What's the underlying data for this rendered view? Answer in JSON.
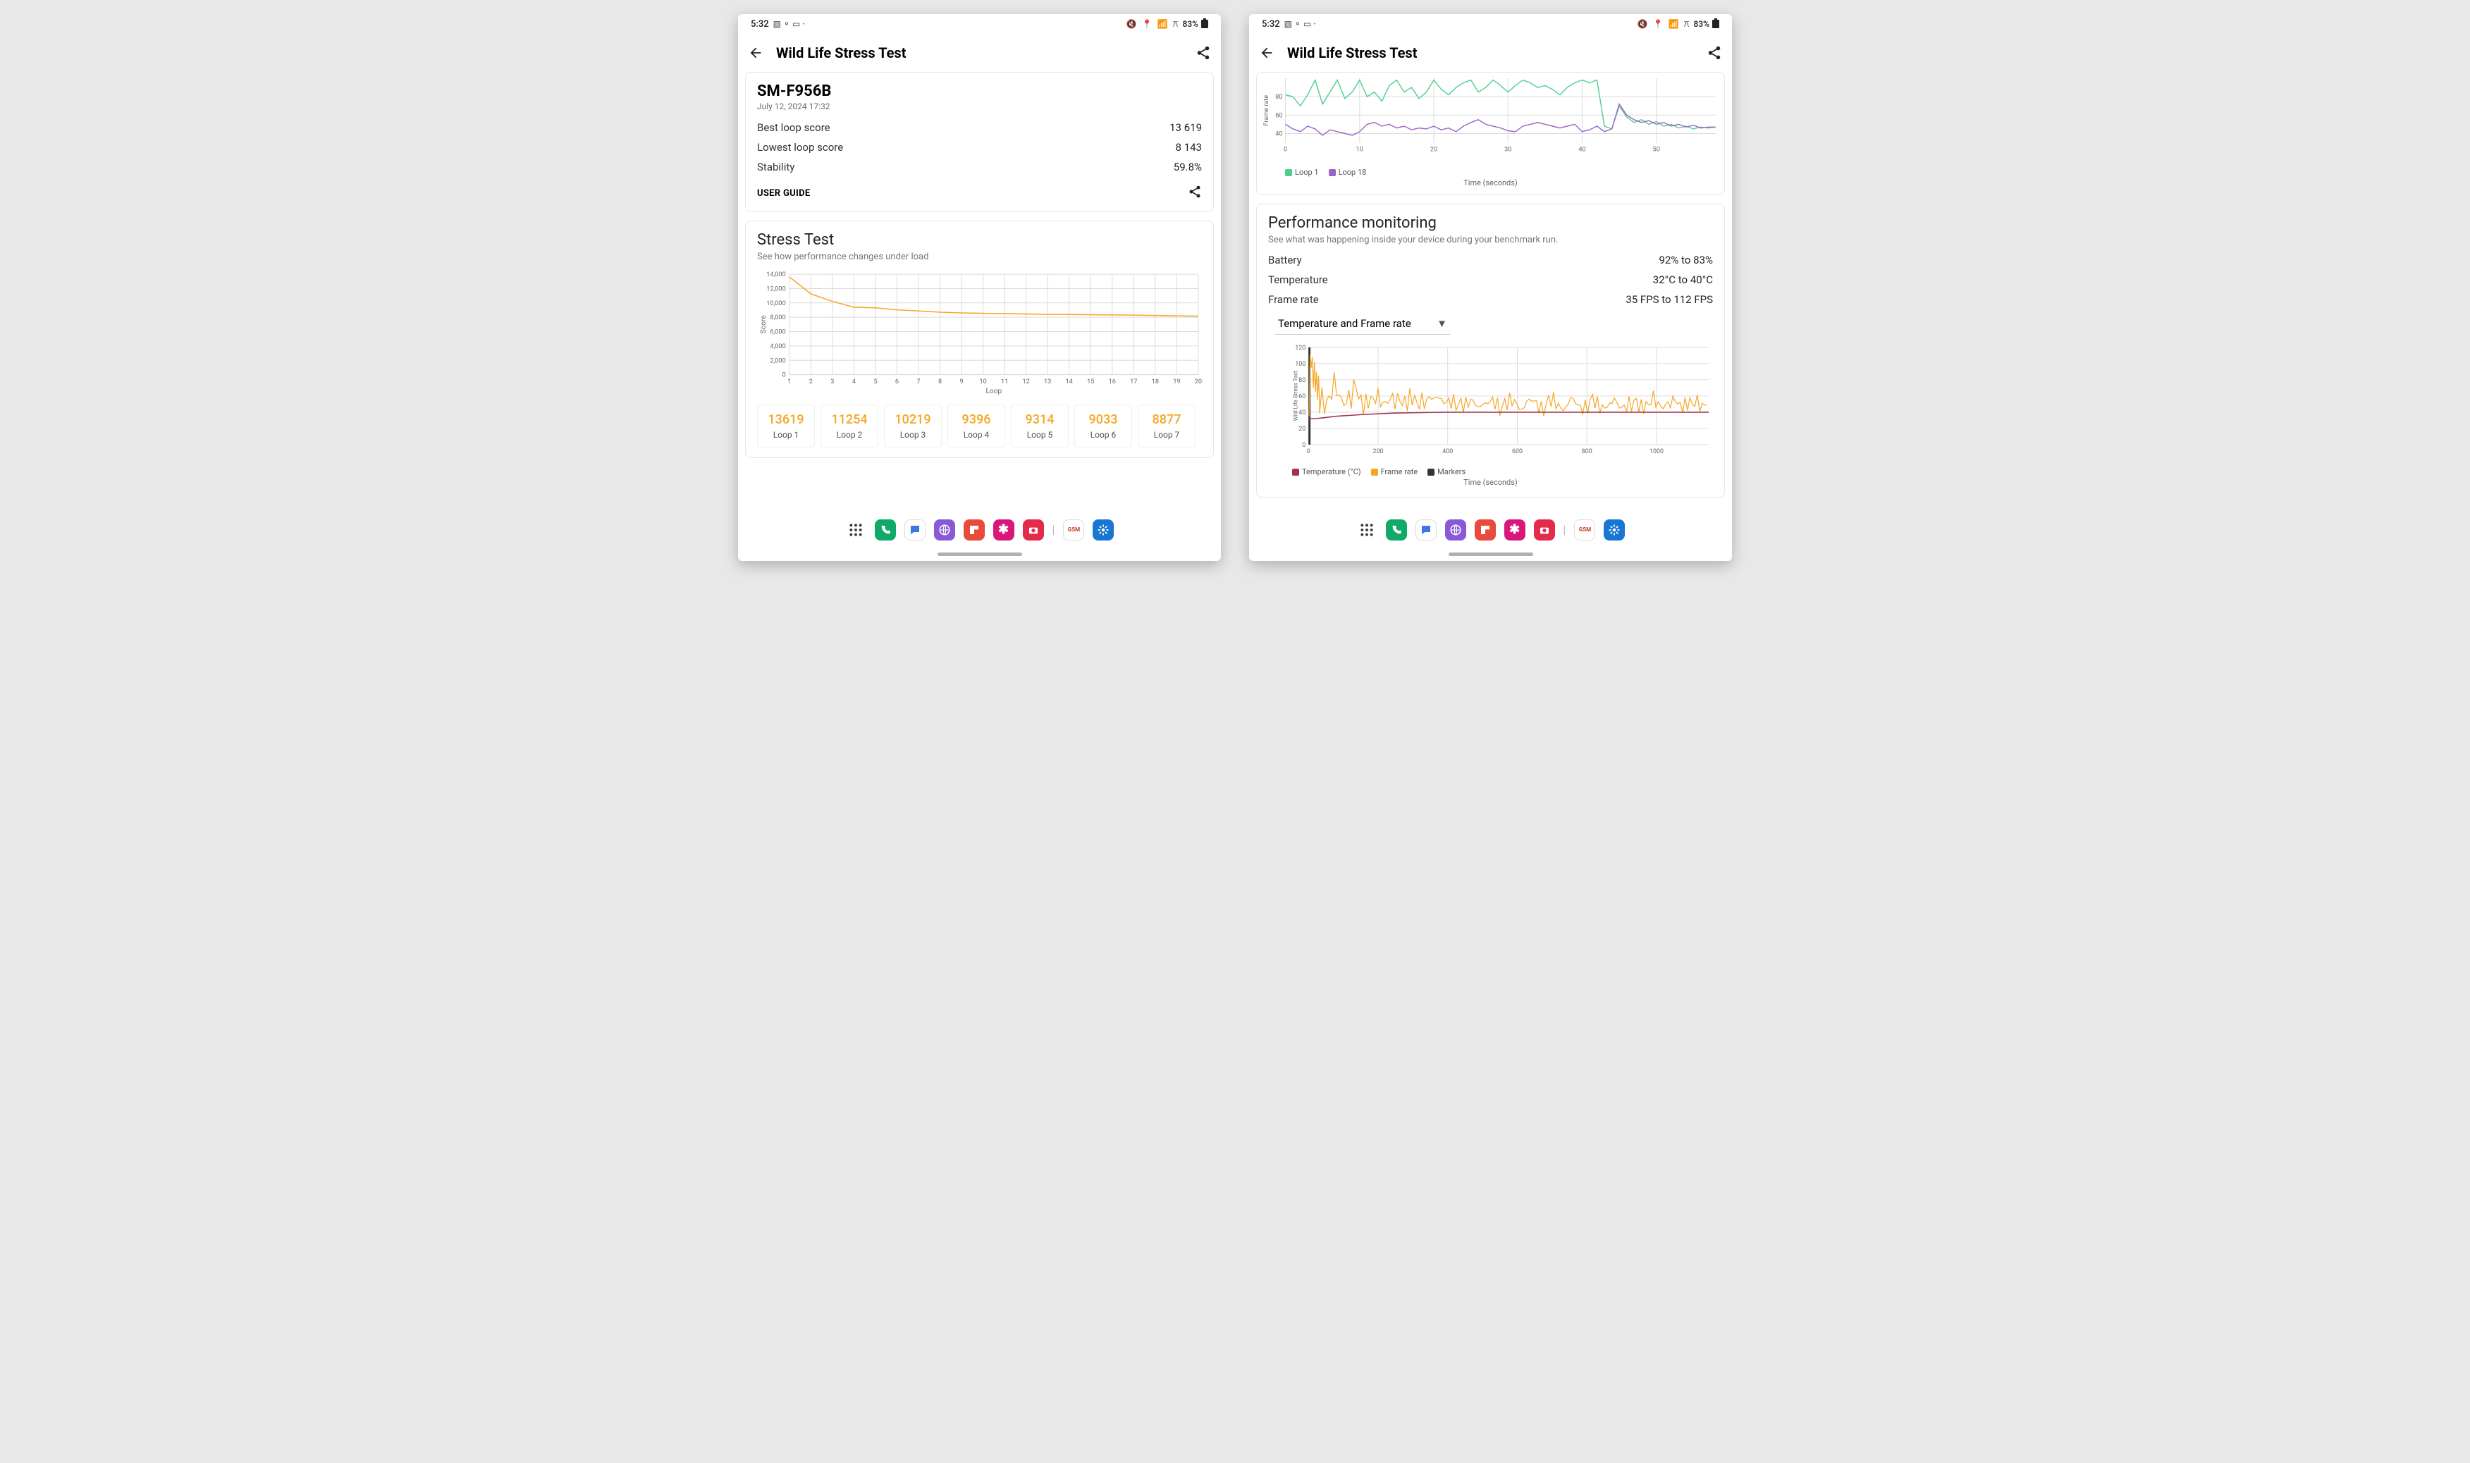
{
  "status": {
    "time": "5:32",
    "battery_pct": "83%"
  },
  "app": {
    "title": "Wild Life Stress Test"
  },
  "left": {
    "device": "SM-F956B",
    "date": "July 12, 2024 17:32",
    "rows": [
      {
        "label": "Best loop score",
        "value": "13 619"
      },
      {
        "label": "Lowest loop score",
        "value": "8 143"
      },
      {
        "label": "Stability",
        "value": "59.8%"
      }
    ],
    "user_guide": "USER GUIDE",
    "stress": {
      "title": "Stress Test",
      "sub": "See how performance changes under load",
      "chart": {
        "type": "line",
        "x_label": "Loop",
        "y_label": "Score",
        "x_ticks": [
          1,
          2,
          3,
          4,
          5,
          6,
          7,
          8,
          9,
          10,
          11,
          12,
          13,
          14,
          15,
          16,
          17,
          18,
          19,
          20
        ],
        "y_ticks": [
          0,
          2000,
          4000,
          6000,
          8000,
          10000,
          12000,
          14000
        ],
        "y_labels": [
          "0",
          "2,000",
          "4,000",
          "6,000",
          "8,000",
          "10,000",
          "12,000",
          "14,000"
        ],
        "ylim": [
          0,
          14000
        ],
        "values": [
          13619,
          11254,
          10219,
          9396,
          9314,
          9033,
          8877,
          8700,
          8600,
          8550,
          8500,
          8450,
          8400,
          8380,
          8350,
          8320,
          8300,
          8250,
          8200,
          8143
        ],
        "line_color": "#f5a623",
        "grid_color": "#dcdcdc",
        "background": "#ffffff",
        "axis_font": 9
      },
      "tiles": [
        {
          "score": "13619",
          "label": "Loop 1"
        },
        {
          "score": "11254",
          "label": "Loop 2"
        },
        {
          "score": "10219",
          "label": "Loop 3"
        },
        {
          "score": "9396",
          "label": "Loop 4"
        },
        {
          "score": "9314",
          "label": "Loop 5"
        },
        {
          "score": "9033",
          "label": "Loop 6"
        },
        {
          "score": "8877",
          "label": "Loop 7"
        }
      ]
    }
  },
  "right": {
    "frame_chart": {
      "type": "line",
      "y_label": "Frame rate",
      "x_label": "Time (seconds)",
      "x_ticks": [
        0,
        10,
        20,
        30,
        40,
        50
      ],
      "y_ticks": [
        40,
        60,
        80
      ],
      "ylim": [
        30,
        100
      ],
      "xlim": [
        0,
        58
      ],
      "legend": [
        {
          "label": "Loop 1",
          "color": "#4fcf8f"
        },
        {
          "label": "Loop 18",
          "color": "#9966c7"
        }
      ],
      "series": [
        {
          "color": "#4fcf8f",
          "points": [
            [
              0,
              82
            ],
            [
              1,
              80
            ],
            [
              2,
              70
            ],
            [
              3,
              82
            ],
            [
              4,
              98
            ],
            [
              5,
              72
            ],
            [
              6,
              85
            ],
            [
              7,
              98
            ],
            [
              8,
              78
            ],
            [
              9,
              85
            ],
            [
              10,
              98
            ],
            [
              11,
              80
            ],
            [
              12,
              85
            ],
            [
              13,
              75
            ],
            [
              14,
              92
            ],
            [
              15,
              98
            ],
            [
              16,
              85
            ],
            [
              17,
              90
            ],
            [
              18,
              78
            ],
            [
              19,
              85
            ],
            [
              20,
              98
            ],
            [
              21,
              88
            ],
            [
              22,
              82
            ],
            [
              23,
              90
            ],
            [
              24,
              95
            ],
            [
              25,
              98
            ],
            [
              26,
              85
            ],
            [
              27,
              90
            ],
            [
              28,
              98
            ],
            [
              29,
              92
            ],
            [
              30,
              85
            ],
            [
              31,
              92
            ],
            [
              32,
              98
            ],
            [
              33,
              95
            ],
            [
              34,
              90
            ],
            [
              35,
              92
            ],
            [
              36,
              88
            ],
            [
              37,
              82
            ],
            [
              38,
              90
            ],
            [
              39,
              95
            ],
            [
              40,
              98
            ],
            [
              41,
              95
            ],
            [
              42,
              98
            ],
            [
              43,
              48
            ],
            [
              44,
              45
            ],
            [
              45,
              70
            ],
            [
              46,
              58
            ],
            [
              47,
              52
            ],
            [
              48,
              55
            ],
            [
              49,
              50
            ],
            [
              50,
              53
            ],
            [
              51,
              48
            ],
            [
              52,
              50
            ],
            [
              53,
              46
            ],
            [
              54,
              48
            ],
            [
              55,
              45
            ],
            [
              56,
              47
            ],
            [
              57,
              46
            ],
            [
              58,
              47
            ]
          ]
        },
        {
          "color": "#9966c7",
          "points": [
            [
              0,
              50
            ],
            [
              1,
              45
            ],
            [
              2,
              42
            ],
            [
              3,
              48
            ],
            [
              4,
              45
            ],
            [
              5,
              38
            ],
            [
              6,
              44
            ],
            [
              7,
              42
            ],
            [
              8,
              40
            ],
            [
              9,
              38
            ],
            [
              10,
              42
            ],
            [
              11,
              50
            ],
            [
              12,
              52
            ],
            [
              13,
              48
            ],
            [
              14,
              50
            ],
            [
              15,
              46
            ],
            [
              16,
              48
            ],
            [
              17,
              44
            ],
            [
              18,
              46
            ],
            [
              19,
              45
            ],
            [
              20,
              48
            ],
            [
              21,
              44
            ],
            [
              22,
              46
            ],
            [
              23,
              42
            ],
            [
              24,
              48
            ],
            [
              25,
              52
            ],
            [
              26,
              55
            ],
            [
              27,
              50
            ],
            [
              28,
              48
            ],
            [
              29,
              46
            ],
            [
              30,
              43
            ],
            [
              31,
              42
            ],
            [
              32,
              48
            ],
            [
              33,
              50
            ],
            [
              34,
              52
            ],
            [
              35,
              50
            ],
            [
              36,
              48
            ],
            [
              37,
              46
            ],
            [
              38,
              48
            ],
            [
              39,
              50
            ],
            [
              40,
              42
            ],
            [
              41,
              44
            ],
            [
              42,
              48
            ],
            [
              43,
              42
            ],
            [
              44,
              45
            ],
            [
              45,
              72
            ],
            [
              46,
              60
            ],
            [
              47,
              55
            ],
            [
              48,
              52
            ],
            [
              49,
              54
            ],
            [
              50,
              50
            ],
            [
              51,
              52
            ],
            [
              52,
              48
            ],
            [
              53,
              50
            ],
            [
              54,
              47
            ],
            [
              55,
              49
            ],
            [
              56,
              46
            ],
            [
              57,
              47
            ],
            [
              58,
              47
            ]
          ]
        }
      ],
      "grid_color": "#dcdcdc",
      "axis_font": 9
    },
    "perf": {
      "title": "Performance monitoring",
      "sub": "See what was happening inside your device during your benchmark run.",
      "rows": [
        {
          "label": "Battery",
          "value": "92% to 83%"
        },
        {
          "label": "Temperature",
          "value": "32°C to 40°C"
        },
        {
          "label": "Frame rate",
          "value": "35 FPS to 112 FPS"
        }
      ],
      "dropdown": "Temperature and Frame rate"
    },
    "temp_chart": {
      "type": "line",
      "x_label": "Time (seconds)",
      "side_label": "Wild Life Stress Test",
      "x_ticks": [
        0,
        200,
        400,
        600,
        800,
        1000
      ],
      "y_ticks": [
        0,
        20,
        40,
        60,
        80,
        100,
        120
      ],
      "ylim": [
        0,
        120
      ],
      "xlim": [
        0,
        1150
      ],
      "legend": [
        {
          "label": "Temperature (°C)",
          "color": "#a0354a"
        },
        {
          "label": "Frame rate",
          "color": "#f5a623"
        },
        {
          "label": "Markers",
          "color": "#333333"
        }
      ],
      "temp_series": {
        "color": "#a0354a",
        "points": [
          [
            0,
            32
          ],
          [
            20,
            32
          ],
          [
            40,
            33
          ],
          [
            80,
            35
          ],
          [
            150,
            37
          ],
          [
            250,
            39
          ],
          [
            400,
            40
          ],
          [
            600,
            40
          ],
          [
            800,
            40
          ],
          [
            1000,
            40
          ],
          [
            1150,
            40
          ]
        ]
      },
      "fr_series_color": "#f5a623",
      "grid_color": "#dcdcdc",
      "axis_font": 9
    }
  },
  "dock": [
    {
      "name": "apps-grid-icon",
      "bg": "transparent",
      "shape": "grid",
      "fg": "#333"
    },
    {
      "name": "phone-icon",
      "bg": "#0fa968",
      "shape": "phone",
      "fg": "#fff"
    },
    {
      "name": "messages-icon",
      "bg": "#ffffff",
      "shape": "chat",
      "fg": "#3b78e7"
    },
    {
      "name": "browser-icon",
      "bg": "#8a5ad6",
      "shape": "globe",
      "fg": "#fff"
    },
    {
      "name": "flipboard-icon",
      "bg": "#e84a3c",
      "shape": "flip",
      "fg": "#fff"
    },
    {
      "name": "asterisk-icon",
      "bg": "#d9177a",
      "shape": "star",
      "fg": "#fff"
    },
    {
      "name": "camera-icon",
      "bg": "#e42b4a",
      "shape": "camera",
      "fg": "#fff"
    },
    {
      "name": "sep",
      "bg": "transparent",
      "shape": "sep",
      "fg": "#bbb"
    },
    {
      "name": "gsm-icon",
      "bg": "#ffffff",
      "shape": "gsm",
      "fg": "#c23b22"
    },
    {
      "name": "settings-icon",
      "bg": "#1976d2",
      "shape": "gear",
      "fg": "#fff"
    }
  ]
}
